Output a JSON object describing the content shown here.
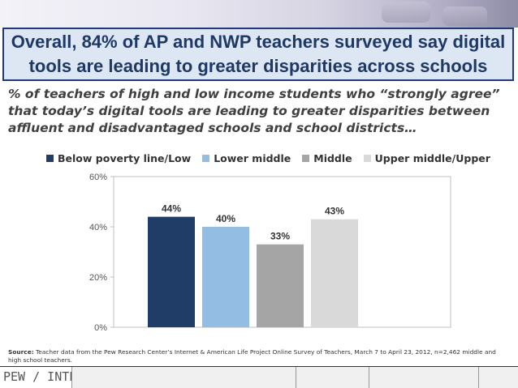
{
  "headline": "Overall, 84% of AP and NWP teachers surveyed say digital tools are leading to greater disparities across schools",
  "subtitle": "% of teachers of high and low income students who “strongly agree” that today’s digital tools are leading to greater disparities between affluent and disadvantaged schools and school districts…",
  "source": {
    "label": "Source:",
    "text": "Teacher data from the Pew Research Center’s Internet & American Life Project Online Survey of Teachers, March 7 to April 23, 2012, n=2,462 middle and high school teachers."
  },
  "footer": {
    "logo_text": "PEW / INTERNET"
  },
  "colors": {
    "headline_border": "#1f3a7a",
    "headline_bg": "#dde7f3",
    "title_text": "#1f3864"
  },
  "chart_data": {
    "type": "bar",
    "title": "",
    "xlabel": "",
    "ylabel": "",
    "categories": [
      "Below poverty line/Low",
      "Lower middle",
      "Middle",
      "Upper middle/Upper"
    ],
    "values": [
      44,
      40,
      33,
      43
    ],
    "data_labels": [
      "44%",
      "40%",
      "33%",
      "43%"
    ],
    "colors": [
      "#1f3d66",
      "#94bde3",
      "#a5a5a5",
      "#d9d9d9"
    ],
    "ylim": [
      0,
      60
    ],
    "yticks": [
      0,
      20,
      40,
      60
    ],
    "ytick_labels": [
      "0%",
      "20%",
      "40%",
      "60%"
    ],
    "grid": false,
    "legend_position": "top"
  }
}
